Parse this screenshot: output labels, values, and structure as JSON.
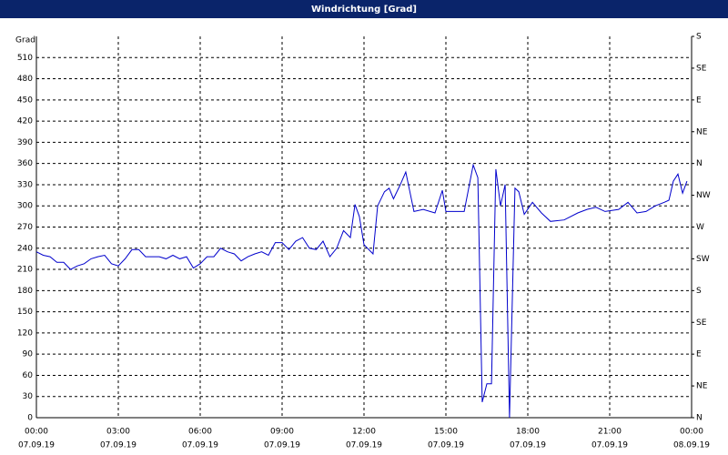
{
  "chart_data": {
    "type": "line",
    "title": "Windrichtung [Grad]",
    "ylabel": "Grad",
    "x": [
      0,
      0.25,
      0.5,
      0.75,
      1,
      1.25,
      1.5,
      1.75,
      2,
      2.25,
      2.5,
      2.75,
      3,
      3.25,
      3.5,
      3.75,
      4,
      4.25,
      4.5,
      4.75,
      5,
      5.25,
      5.5,
      5.75,
      6,
      6.25,
      6.5,
      6.75,
      7,
      7.25,
      7.5,
      7.75,
      8,
      8.25,
      8.5,
      8.75,
      9,
      9.25,
      9.5,
      9.75,
      10,
      10.25,
      10.5,
      10.75,
      11,
      11.25,
      11.5,
      11.67,
      11.83,
      12,
      12.33,
      12.5,
      12.75,
      12.92,
      13.08,
      13.33,
      13.53,
      13.67,
      13.83,
      14.17,
      14.6,
      14.87,
      15,
      15.33,
      15.67,
      16,
      16.17,
      16.33,
      16.5,
      16.67,
      16.83,
      17,
      17.17,
      17.33,
      17.53,
      17.67,
      17.87,
      18.17,
      18.5,
      18.83,
      19.33,
      19.83,
      20.17,
      20.5,
      20.83,
      21.33,
      21.67,
      22,
      22.33,
      22.67,
      23,
      23.17,
      23.33,
      23.5,
      23.67,
      23.83
    ],
    "values": [
      235,
      230,
      228,
      220,
      220,
      210,
      215,
      218,
      225,
      228,
      230,
      218,
      215,
      225,
      238,
      238,
      228,
      228,
      228,
      225,
      230,
      225,
      228,
      212,
      218,
      228,
      228,
      240,
      235,
      232,
      222,
      228,
      232,
      235,
      230,
      248,
      248,
      238,
      250,
      255,
      240,
      238,
      250,
      228,
      240,
      265,
      255,
      302,
      285,
      245,
      232,
      300,
      320,
      325,
      310,
      330,
      348,
      322,
      292,
      295,
      290,
      322,
      292,
      292,
      292,
      358,
      340,
      22,
      48,
      48,
      352,
      300,
      330,
      0,
      325,
      320,
      288,
      305,
      290,
      278,
      280,
      290,
      295,
      298,
      292,
      295,
      305,
      290,
      292,
      300,
      305,
      308,
      335,
      345,
      318,
      335
    ],
    "color": "#0000cc",
    "xlim": [
      0,
      24
    ],
    "xticks": [
      {
        "value": 0,
        "label": "00:00"
      },
      {
        "value": 3,
        "label": "03:00"
      },
      {
        "value": 6,
        "label": "06:00"
      },
      {
        "value": 9,
        "label": "09:00"
      },
      {
        "value": 12,
        "label": "12:00"
      },
      {
        "value": 15,
        "label": "15:00"
      },
      {
        "value": 18,
        "label": "18:00"
      },
      {
        "value": 21,
        "label": "21:00"
      },
      {
        "value": 24,
        "label": "00:00"
      }
    ],
    "xtick_dates": [
      "07.09.19",
      "07.09.19",
      "07.09.19",
      "07.09.19",
      "07.09.19",
      "07.09.19",
      "07.09.19",
      "07.09.19",
      "08.09.19"
    ],
    "ylim": [
      0,
      540
    ],
    "yticks": [
      0,
      30,
      60,
      90,
      120,
      150,
      180,
      210,
      240,
      270,
      300,
      330,
      360,
      390,
      420,
      450,
      480,
      510
    ],
    "y2lim": [
      0,
      540
    ],
    "y2ticks": [
      {
        "value": 0,
        "label": "N"
      },
      {
        "value": 45,
        "label": "NE"
      },
      {
        "value": 90,
        "label": "E"
      },
      {
        "value": 135,
        "label": "SE"
      },
      {
        "value": 180,
        "label": "S"
      },
      {
        "value": 225,
        "label": "SW"
      },
      {
        "value": 270,
        "label": "W"
      },
      {
        "value": 315,
        "label": "NW"
      },
      {
        "value": 360,
        "label": "N"
      },
      {
        "value": 405,
        "label": "NE"
      },
      {
        "value": 450,
        "label": "E"
      },
      {
        "value": 495,
        "label": "SE"
      },
      {
        "value": 540,
        "label": "S"
      }
    ],
    "grid": true
  }
}
